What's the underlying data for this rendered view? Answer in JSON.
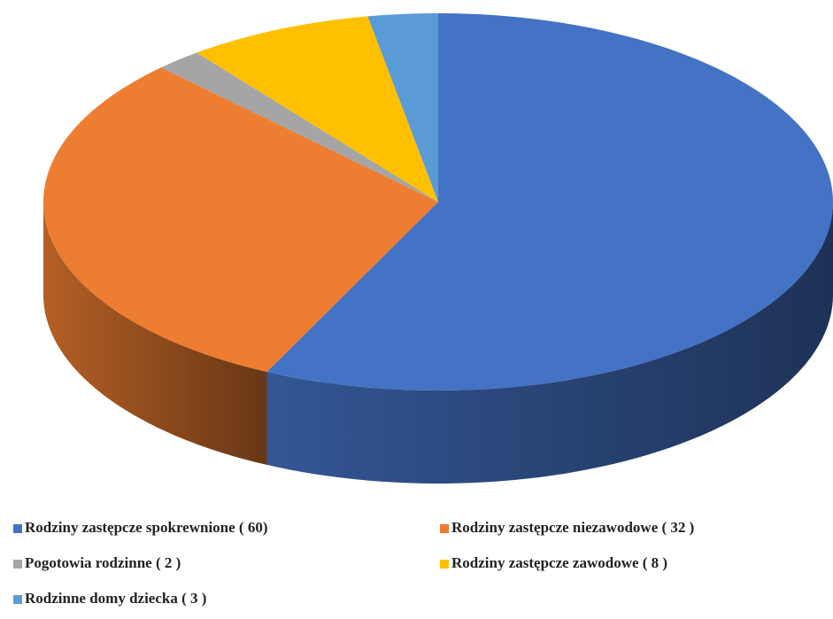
{
  "chart_data": {
    "type": "pie",
    "series": [
      {
        "name": "Rodziny zastępcze spokrewnione ( 60)",
        "color": "#4472c4",
        "values": [
          60
        ]
      },
      {
        "name": "Rodziny zastępcze niezawodowe ( 32 )",
        "color": "#ed7d31",
        "values": [
          32
        ]
      },
      {
        "name": "Pogotowia rodzinne ( 2 )",
        "color": "#a5a5a5",
        "values": [
          2
        ]
      },
      {
        "name": "Rodziny zastępcze zawodowe ( 8 )",
        "color": "#ffc000",
        "values": [
          8
        ]
      },
      {
        "name": "Rodzinne domy dziecka ( 3 )",
        "color": "#5b9bd5",
        "values": [
          3
        ]
      }
    ],
    "legend": "bottom"
  }
}
